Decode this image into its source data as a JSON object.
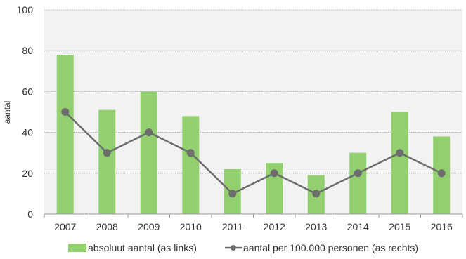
{
  "chart_data": {
    "type": "bar",
    "categories": [
      "2007",
      "2008",
      "2009",
      "2010",
      "2011",
      "2012",
      "2013",
      "2014",
      "2015",
      "2016"
    ],
    "ylabel": "aantal",
    "ylim": [
      0,
      100
    ],
    "yticks": [
      "0",
      "20",
      "40",
      "60",
      "80",
      "100"
    ],
    "grid": true,
    "legend_position": "bottom",
    "series": [
      {
        "name": "absoluut aantal (as links)",
        "type": "bar",
        "color": "#92cf6f",
        "values": [
          78,
          51,
          60,
          48,
          22,
          25,
          19,
          30,
          50,
          38
        ]
      },
      {
        "name": "aantal per 100.000 personen (as rechts)",
        "type": "line",
        "color": "#6d6d6d",
        "values": [
          50,
          30,
          40,
          30,
          10,
          20,
          10,
          20,
          30,
          20
        ]
      }
    ]
  }
}
